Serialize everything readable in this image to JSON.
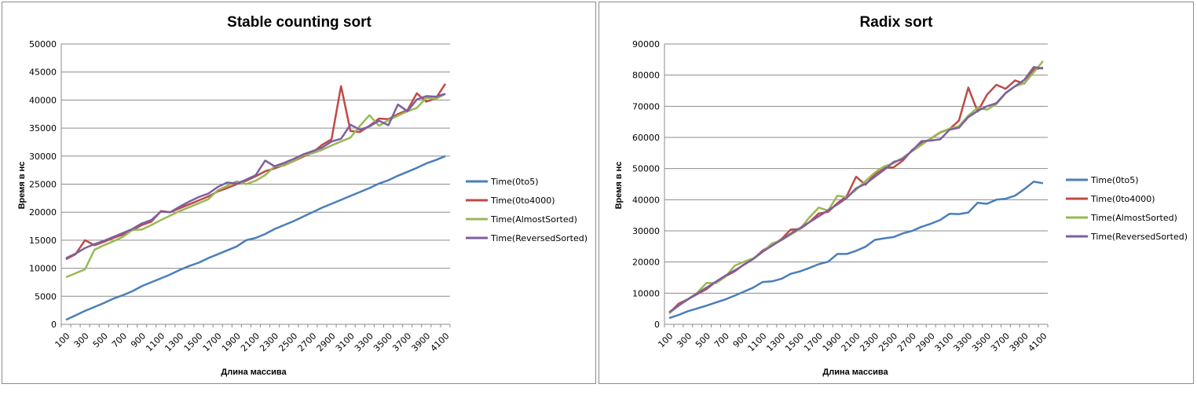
{
  "chart_data": [
    {
      "type": "line",
      "title": "Stable counting sort",
      "xlabel": "Длина массива",
      "ylabel": "Время в нс",
      "ylim": [
        0,
        50000
      ],
      "yticks": [
        0,
        5000,
        10000,
        15000,
        20000,
        25000,
        30000,
        35000,
        40000,
        45000,
        50000
      ],
      "grid": true,
      "legend_position": "right",
      "x": [
        100,
        200,
        300,
        400,
        500,
        600,
        700,
        800,
        900,
        1000,
        1100,
        1200,
        1300,
        1400,
        1500,
        1600,
        1700,
        1800,
        1900,
        2000,
        2100,
        2200,
        2300,
        2400,
        2500,
        2600,
        2700,
        2800,
        2900,
        3000,
        3100,
        3200,
        3300,
        3400,
        3500,
        3600,
        3700,
        3800,
        3900,
        4000,
        4100
      ],
      "xtick_labels": [
        "100",
        "300",
        "500",
        "700",
        "900",
        "1100",
        "1300",
        "1500",
        "1700",
        "1900",
        "2100",
        "2300",
        "2500",
        "2700",
        "2900",
        "3100",
        "3300",
        "3500",
        "3700",
        "3900",
        "4100"
      ],
      "series": [
        {
          "name": "Time(0to5)",
          "color": "#4a7ebb",
          "values": [
            800,
            1600,
            2400,
            3100,
            3800,
            4600,
            5200,
            5900,
            6800,
            7500,
            8200,
            8900,
            9700,
            10400,
            11000,
            11800,
            12500,
            13200,
            13900,
            15000,
            15400,
            16100,
            17000,
            17700,
            18400,
            19200,
            20000,
            20800,
            21500,
            22200,
            22900,
            23600,
            24300,
            25100,
            25700,
            26500,
            27200,
            27900,
            28700,
            29300,
            30000
          ]
        },
        {
          "name": "Time(0to4000)",
          "color": "#be4b48",
          "values": [
            11600,
            12500,
            15000,
            14100,
            14700,
            15400,
            16000,
            16800,
            17700,
            18300,
            20200,
            20000,
            20700,
            21400,
            22100,
            22800,
            23700,
            24300,
            25000,
            25600,
            26400,
            27300,
            27800,
            28400,
            29100,
            29900,
            30600,
            32000,
            33000,
            42500,
            34500,
            34300,
            35400,
            36700,
            36600,
            37500,
            38200,
            41200,
            39700,
            40300,
            42900
          ]
        },
        {
          "name": "Time(AlmostSorted)",
          "color": "#98b954",
          "values": [
            8400,
            9100,
            9800,
            13300,
            14100,
            14800,
            15600,
            16800,
            16900,
            17700,
            18600,
            19400,
            20200,
            20900,
            21600,
            22300,
            23900,
            24700,
            25500,
            25000,
            25600,
            26600,
            28200,
            28300,
            29100,
            30100,
            30500,
            31100,
            31900,
            32600,
            33300,
            35400,
            37300,
            35400,
            36400,
            37200,
            38000,
            38600,
            40400,
            40200,
            41100
          ]
        },
        {
          "name": "Time(ReversedSorted)",
          "color": "#7d5fa0",
          "values": [
            11800,
            12600,
            13600,
            14300,
            14900,
            15600,
            16300,
            17000,
            18000,
            18600,
            20100,
            20000,
            21000,
            21900,
            22700,
            23300,
            24500,
            25300,
            25100,
            25800,
            26600,
            29200,
            28200,
            28800,
            29500,
            30300,
            30900,
            31500,
            32600,
            33100,
            35600,
            34700,
            35300,
            36300,
            35500,
            39200,
            38000,
            40100,
            40700,
            40600,
            41100
          ]
        }
      ]
    },
    {
      "type": "line",
      "title": "Radix sort",
      "xlabel": "Длина массива",
      "ylabel": "Время в нс",
      "ylim": [
        0,
        90000
      ],
      "yticks": [
        0,
        10000,
        20000,
        30000,
        40000,
        50000,
        60000,
        70000,
        80000,
        90000
      ],
      "grid": true,
      "legend_position": "right",
      "x": [
        100,
        200,
        300,
        400,
        500,
        600,
        700,
        800,
        900,
        1000,
        1100,
        1200,
        1300,
        1400,
        1500,
        1600,
        1700,
        1800,
        1900,
        2000,
        2100,
        2200,
        2300,
        2400,
        2500,
        2600,
        2700,
        2800,
        2900,
        3000,
        3100,
        3200,
        3300,
        3400,
        3500,
        3600,
        3700,
        3800,
        3900,
        4000,
        4100
      ],
      "xtick_labels": [
        "100",
        "300",
        "500",
        "700",
        "900",
        "1100",
        "1300",
        "1500",
        "1700",
        "1900",
        "2100",
        "2300",
        "2500",
        "2700",
        "2900",
        "3100",
        "3300",
        "3500",
        "3700",
        "3900",
        "4100"
      ],
      "series": [
        {
          "name": "Time(0to5)",
          "color": "#4a7ebb",
          "values": [
            2000,
            3000,
            4200,
            5100,
            6000,
            7000,
            8000,
            9200,
            10500,
            11800,
            13600,
            13800,
            14600,
            16200,
            17000,
            18100,
            19300,
            20100,
            22600,
            22600,
            23600,
            24900,
            27100,
            27600,
            28000,
            29200,
            30000,
            31300,
            32300,
            33500,
            35500,
            35400,
            35900,
            39000,
            38700,
            40000,
            40300,
            41300,
            43400,
            45800,
            45300
          ]
        },
        {
          "name": "Time(0to4000)",
          "color": "#be4b48",
          "values": [
            3500,
            6600,
            8100,
            9700,
            11300,
            13700,
            15400,
            17000,
            19200,
            21000,
            23700,
            25500,
            27300,
            30400,
            30600,
            32800,
            35600,
            36100,
            38900,
            41200,
            47400,
            44800,
            48200,
            50300,
            50400,
            52600,
            56000,
            58000,
            59600,
            61600,
            62700,
            65400,
            76000,
            68300,
            73700,
            76900,
            75600,
            78300,
            77300,
            81800,
            82400
          ]
        },
        {
          "name": "Time(AlmostSorted)",
          "color": "#98b954",
          "values": [
            3500,
            6000,
            8100,
            10100,
            13300,
            13200,
            15200,
            18800,
            20100,
            21200,
            23300,
            26000,
            27000,
            28800,
            30600,
            34300,
            37500,
            36500,
            41300,
            40800,
            43200,
            46000,
            48700,
            50700,
            51700,
            53500,
            55600,
            57600,
            59700,
            61700,
            62800,
            63600,
            67000,
            69500,
            68900,
            70700,
            74200,
            76400,
            77400,
            80900,
            84500
          ]
        },
        {
          "name": "Time(ReversedSorted)",
          "color": "#7d5fa0",
          "values": [
            3900,
            6000,
            8000,
            9900,
            11800,
            13700,
            15600,
            17300,
            19100,
            21000,
            23300,
            25200,
            27100,
            29100,
            30900,
            32800,
            34700,
            36600,
            38500,
            40600,
            43700,
            45100,
            47400,
            49600,
            52100,
            53100,
            55800,
            58800,
            59000,
            59400,
            62500,
            63100,
            66500,
            68500,
            70000,
            71000,
            74300,
            76400,
            78500,
            82600,
            82100
          ]
        }
      ]
    }
  ]
}
